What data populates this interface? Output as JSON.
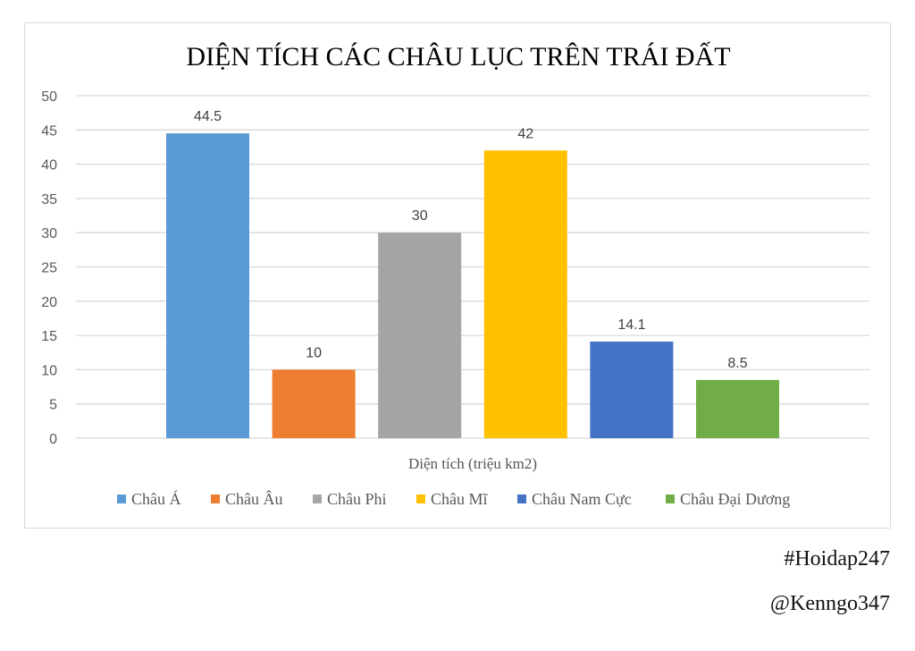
{
  "chart_data": {
    "type": "bar",
    "title": "DIỆN TÍCH CÁC CHÂU LỤC TRÊN TRÁI ĐẤT",
    "xlabel": "Diện tích (triệu km2)",
    "ylabel": "",
    "ylim": [
      0,
      50
    ],
    "yticks": [
      "0",
      "5",
      "10",
      "15",
      "20",
      "25",
      "30",
      "35",
      "40",
      "45",
      "50"
    ],
    "grid": true,
    "legend": "bottom",
    "series": [
      {
        "name": "Châu Á",
        "value": 44.5,
        "label": "44.5",
        "color": "#5b9bd5"
      },
      {
        "name": "Châu Âu",
        "value": 10,
        "label": "10",
        "color": "#ed7d31"
      },
      {
        "name": "Châu Phi",
        "value": 30,
        "label": "30",
        "color": "#a5a5a5"
      },
      {
        "name": "Châu Mĩ",
        "value": 42,
        "label": "42",
        "color": "#ffc000"
      },
      {
        "name": "Châu Nam Cực",
        "value": 14.1,
        "label": "14.1",
        "color": "#4472c4"
      },
      {
        "name": "Châu Đại Dương",
        "value": 8.5,
        "label": "8.5",
        "color": "#70ad47"
      }
    ]
  },
  "watermarks": {
    "line1": "#Hoidap247",
    "line2": "@Kenngo347"
  }
}
